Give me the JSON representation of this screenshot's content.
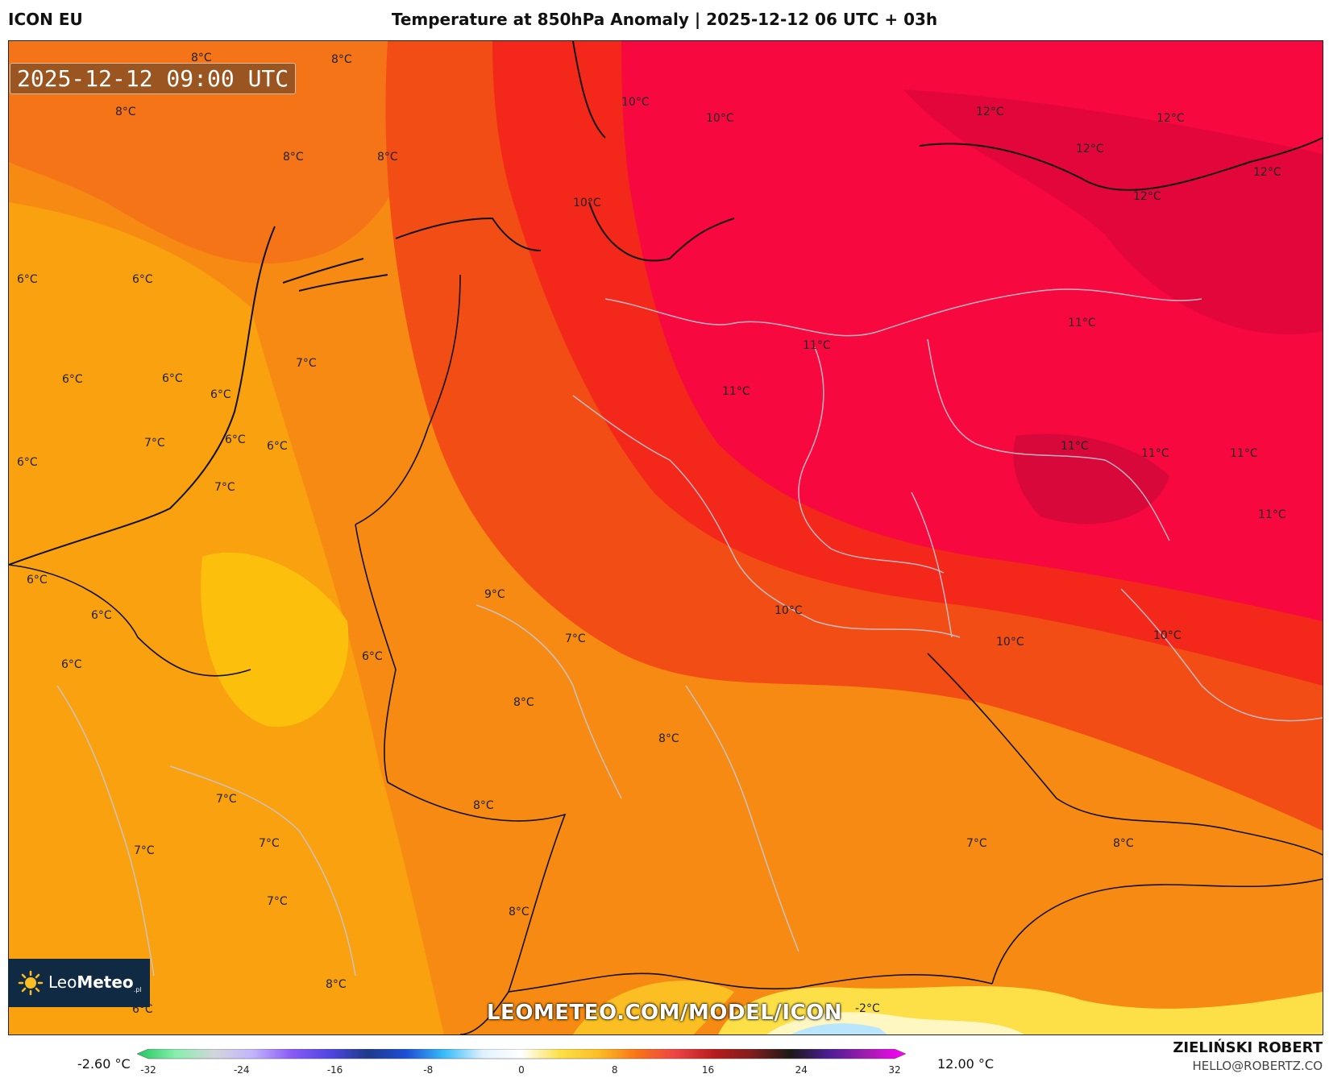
{
  "header": {
    "model": "ICON EU",
    "title": "Temperature at 850hPa Anomaly | 2025-12-12 06 UTC + 03h"
  },
  "map": {
    "valid_time": "2025-12-12 09:00 UTC",
    "labels": [
      {
        "text": "8°C"
      },
      {
        "text": "8°C"
      },
      {
        "text": "10°C"
      },
      {
        "text": "10°C"
      },
      {
        "text": "12°C"
      },
      {
        "text": "12°C"
      },
      {
        "text": "12°C"
      },
      {
        "text": "12°C"
      },
      {
        "text": "12°C"
      },
      {
        "text": "8°C"
      },
      {
        "text": "8°C"
      },
      {
        "text": "8°C"
      },
      {
        "text": "10°C"
      },
      {
        "text": "6°C"
      },
      {
        "text": "6°C"
      },
      {
        "text": "7°C"
      },
      {
        "text": "11°C"
      },
      {
        "text": "11°C"
      },
      {
        "text": "6°C"
      },
      {
        "text": "6°C"
      },
      {
        "text": "6°C"
      },
      {
        "text": "11°C"
      },
      {
        "text": "11°C"
      },
      {
        "text": "11°C"
      },
      {
        "text": "11°C"
      },
      {
        "text": "7°C"
      },
      {
        "text": "6°C"
      },
      {
        "text": "6°C"
      },
      {
        "text": "6°C"
      },
      {
        "text": "7°C"
      },
      {
        "text": "11°C"
      },
      {
        "text": "6°C"
      },
      {
        "text": "9°C"
      },
      {
        "text": "10°C"
      },
      {
        "text": "6°C"
      },
      {
        "text": "7°C"
      },
      {
        "text": "10°C"
      },
      {
        "text": "10°C"
      },
      {
        "text": "6°C"
      },
      {
        "text": "6°C"
      },
      {
        "text": "8°C"
      },
      {
        "text": "8°C"
      },
      {
        "text": "7°C"
      },
      {
        "text": "8°C"
      },
      {
        "text": "7°C"
      },
      {
        "text": "7°C"
      },
      {
        "text": "7°C"
      },
      {
        "text": "8°C"
      },
      {
        "text": "7°C"
      },
      {
        "text": "8°C"
      },
      {
        "text": "8°C"
      },
      {
        "text": "6°C"
      },
      {
        "text": "-2°C"
      }
    ]
  },
  "brand": {
    "logo_text_light": "Leo",
    "logo_text_bold": "Meteo",
    "logo_suffix": ".pl"
  },
  "watermark": "LEOMETEO.COM/MODEL/ICON",
  "colorbar": {
    "min_label": "-2.60 °C",
    "max_label": "12.00 °C",
    "ticks": [
      "-32",
      "-24",
      "-16",
      "-8",
      "0",
      "8",
      "16",
      "24",
      "32"
    ],
    "colors": [
      "#22c55e",
      "#86efac",
      "#d1d5db",
      "#c4b5fd",
      "#8b5cf6",
      "#4f46e5",
      "#1e3a8a",
      "#1d4ed8",
      "#38bdf8",
      "#e0f2fe",
      "#ffffff",
      "#fde047",
      "#fbbf24",
      "#f97316",
      "#ef4444",
      "#b91c1c",
      "#7f1d1d",
      "#1c1917",
      "#4c1d95",
      "#a21caf",
      "#ff00ff"
    ]
  },
  "credits": {
    "author": "ZIELIŃSKI ROBERT",
    "email": "HELLO@ROBERTZ.CO"
  }
}
